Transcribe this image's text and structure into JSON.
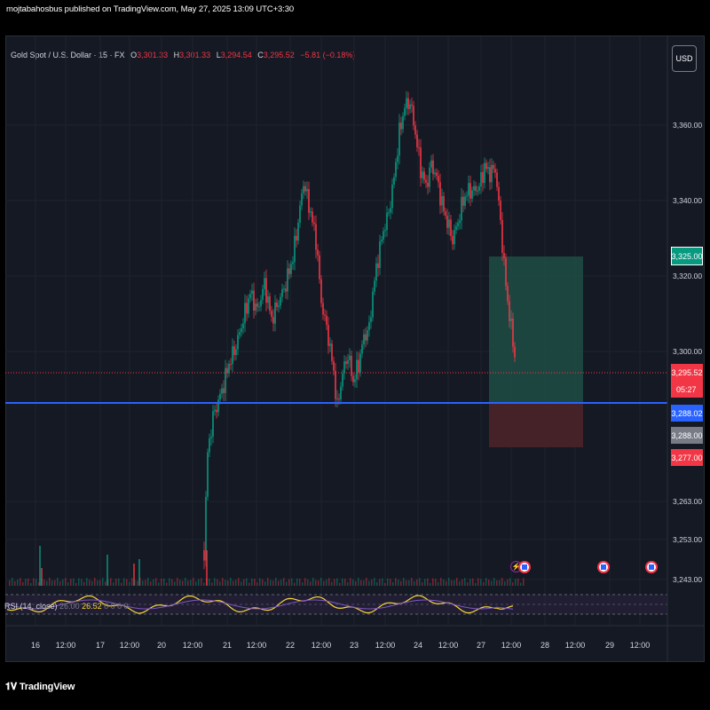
{
  "publish_text": "mojtabahosbus published on TradingView.com, May 27, 2025 13:09 UTC+3:30",
  "legend": {
    "symbol": "Gold Spot / U.S. Dollar · 15 · FX",
    "open_label": "O",
    "open": "3,301.33",
    "high_label": "H",
    "high": "3,301.33",
    "low_label": "L",
    "low": "3,294.54",
    "close_label": "C",
    "close": "3,295.52",
    "change": "−5.81 (−0.18%)"
  },
  "currency_button": "USD",
  "price_axis": {
    "labels": [
      "3,360.00",
      "3,340.00",
      "3,320.00",
      "3,300.00",
      "3,263.00",
      "3,253.00",
      "3,243.00"
    ]
  },
  "price_tags": {
    "target": "3,325.00",
    "last": "3,295.52",
    "countdown": "05:27",
    "blue_line": "3,288.02",
    "entry": "3,288.00",
    "stop": "3,277.00"
  },
  "time_axis": {
    "labels": [
      "16",
      "12:00",
      "17",
      "12:00",
      "20",
      "12:00",
      "21",
      "12:00",
      "22",
      "12:00",
      "23",
      "12:00",
      "24",
      "12:00",
      "27",
      "12:00",
      "28",
      "12:00",
      "29",
      "12:00"
    ]
  },
  "rsi_legend": {
    "title": "RSI (14, close)",
    "muted": "26.00",
    "value": "26.52",
    "zeros": "0 0 0 0"
  },
  "branding": "TradingView",
  "colors": {
    "background": "#151924",
    "up": "#089981",
    "down": "#f23645",
    "horizontal_line": "#2962ff",
    "rsi_line": "#f7d633",
    "target_zone": "#1e4d45",
    "stop_zone": "#4d2329"
  },
  "events": [
    {
      "icon": "lightning-icon"
    },
    {
      "icon": "us-flag-icon"
    },
    {
      "icon": "us-flag-icon"
    },
    {
      "icon": "us-flag-icon"
    }
  ]
}
